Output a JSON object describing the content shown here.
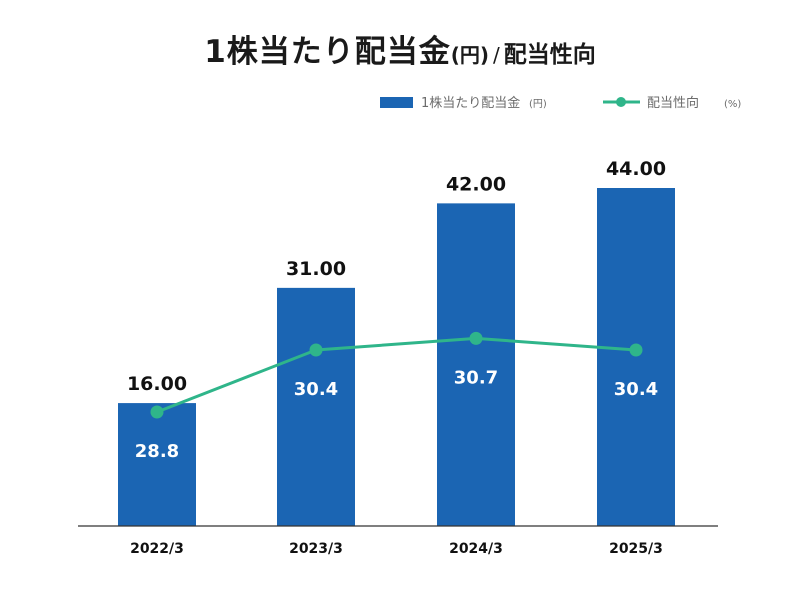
{
  "chart_data": {
    "type": "bar",
    "title": "1株当たり配当金",
    "title_unit": "(円)",
    "title_separator": "/",
    "title_sub": "配当性向",
    "categories": [
      "2022/3",
      "2023/3",
      "2024/3",
      "2025/3"
    ],
    "series": [
      {
        "name": "1株当たり配当金",
        "unit": "(円)",
        "type": "bar",
        "color": "#1b65b3",
        "values": [
          16.0,
          31.0,
          42.0,
          44.0
        ],
        "labels": [
          "16.00",
          "31.00",
          "42.00",
          "44.00"
        ]
      },
      {
        "name": "配当性向",
        "unit": "(%)",
        "type": "line",
        "color": "#2fb58a",
        "values": [
          28.8,
          30.4,
          30.7,
          30.4
        ],
        "labels": [
          "28.8",
          "30.4",
          "30.7",
          "30.4"
        ]
      }
    ],
    "legend_position": "top-right",
    "grid": false
  }
}
